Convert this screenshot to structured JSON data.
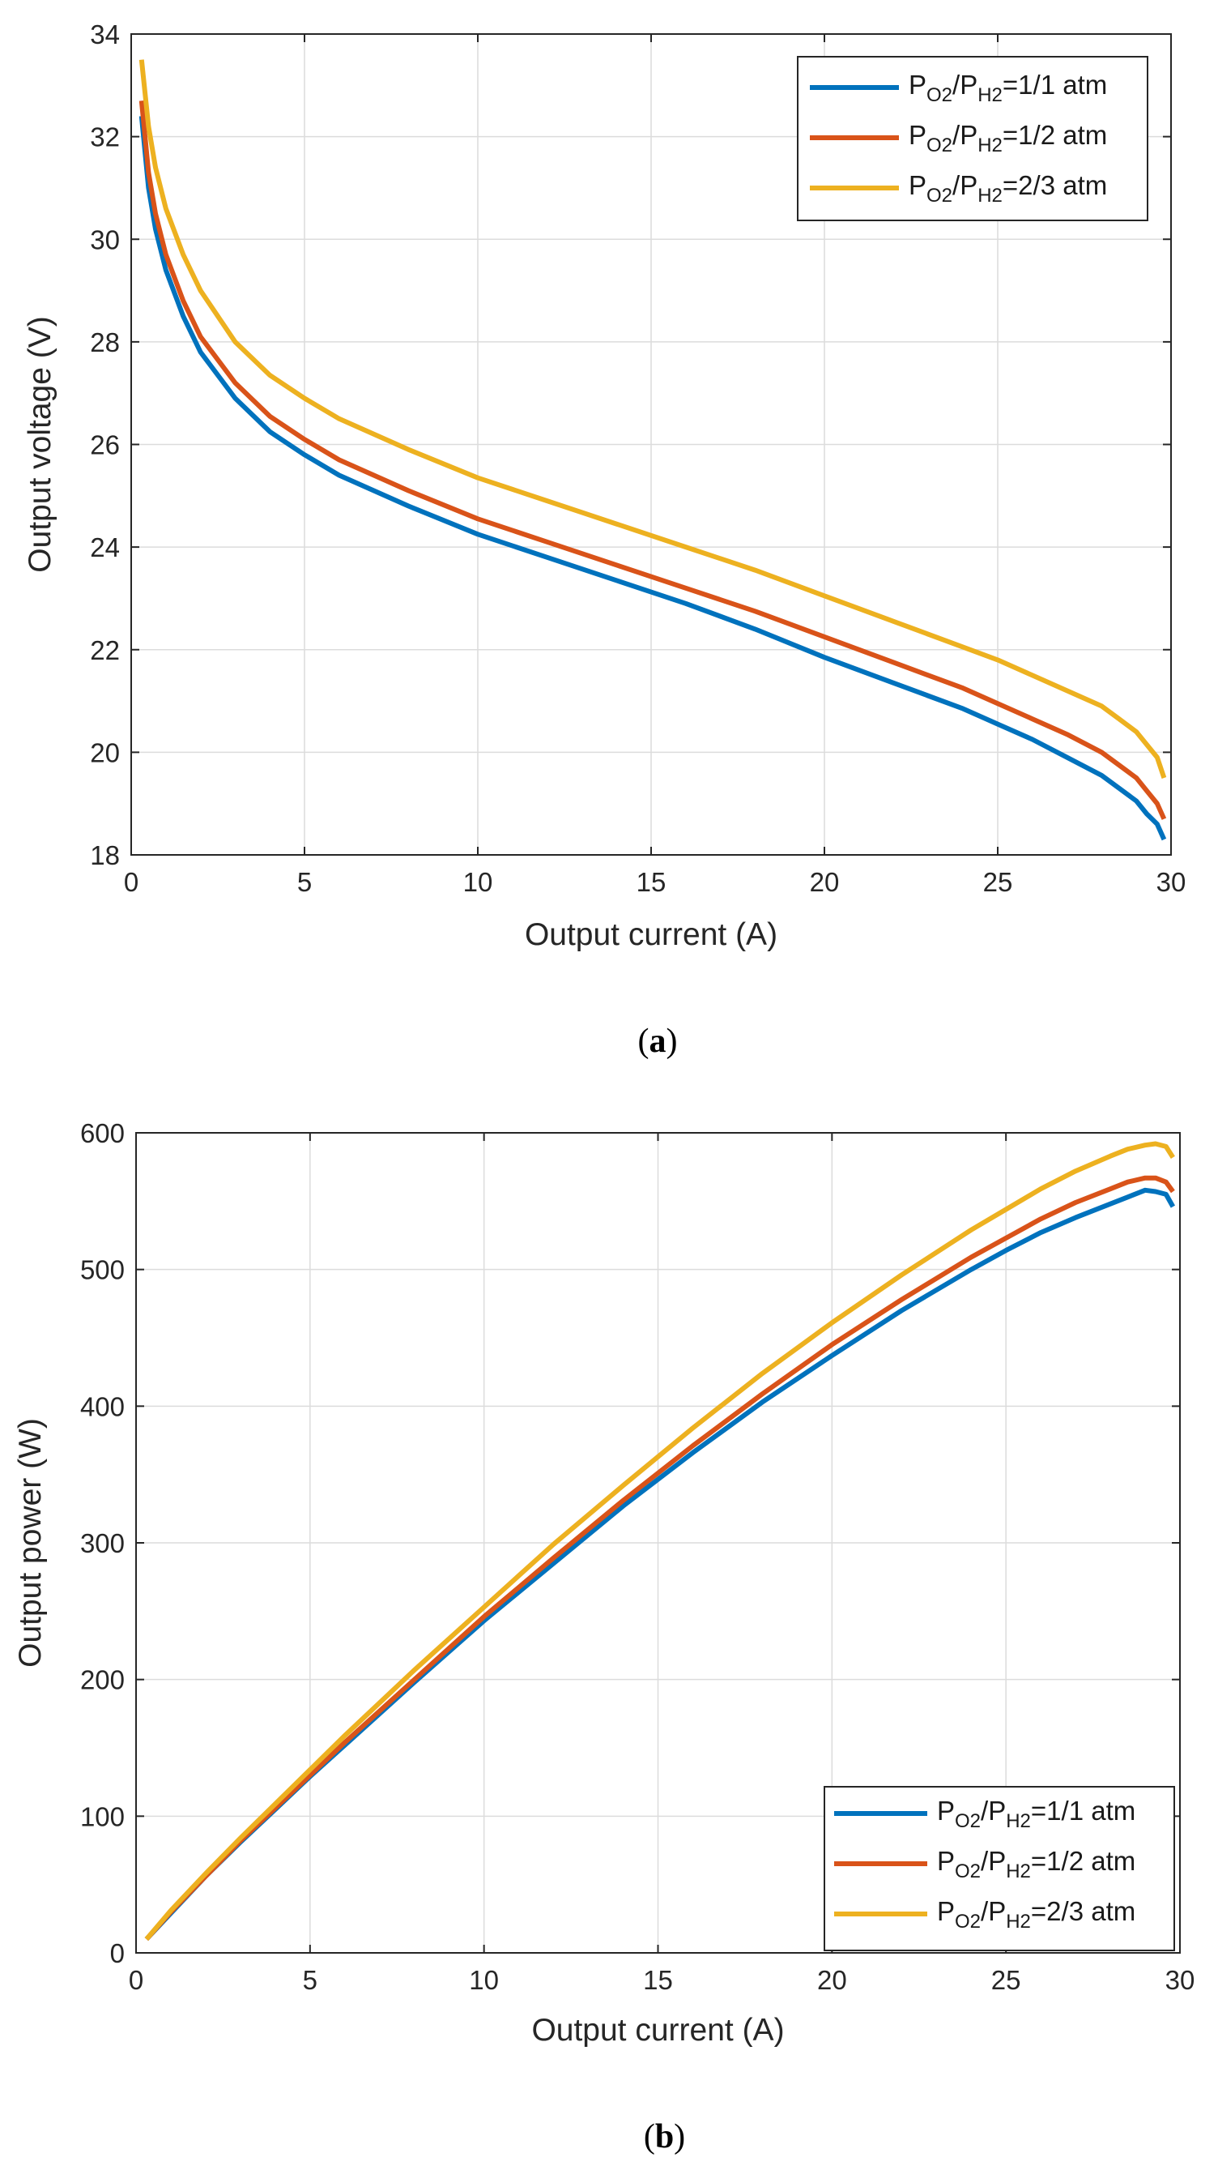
{
  "chart_data": [
    {
      "type": "line",
      "caption_letter": "a",
      "xlabel": "Output current (A)",
      "ylabel": "Output voltage (V)",
      "xlim": [
        0,
        30
      ],
      "ylim": [
        18,
        34
      ],
      "xticks": [
        0,
        5,
        10,
        15,
        20,
        25,
        30
      ],
      "yticks": [
        18,
        20,
        22,
        24,
        26,
        28,
        30,
        32,
        34
      ],
      "grid": true,
      "legend_position": "top-right",
      "series": [
        {
          "name": "PO2/PH2=1/1 atm",
          "legend": {
            "p1": "P",
            "s1": "O2",
            "p2": "/P",
            "s2": "H2",
            "rest": "=1/1 atm"
          },
          "color": "#0072BD",
          "x": [
            0.3,
            0.5,
            0.7,
            1.0,
            1.5,
            2.0,
            3.0,
            4.0,
            5.0,
            6.0,
            8.0,
            10.0,
            12.0,
            14.0,
            16.0,
            18.0,
            20.0,
            22.0,
            24.0,
            25.0,
            26.0,
            27.0,
            28.0,
            28.5,
            29.0,
            29.3,
            29.6,
            29.8
          ],
          "y": [
            32.4,
            31.0,
            30.2,
            29.4,
            28.5,
            27.8,
            26.9,
            26.25,
            25.8,
            25.4,
            24.8,
            24.25,
            23.8,
            23.35,
            22.9,
            22.4,
            21.85,
            21.35,
            20.85,
            20.55,
            20.25,
            19.9,
            19.55,
            19.3,
            19.05,
            18.8,
            18.6,
            18.3
          ]
        },
        {
          "name": "PO2/PH2=1/2 atm",
          "legend": {
            "p1": "P",
            "s1": "O2",
            "p2": "/P",
            "s2": "H2",
            "rest": "=1/2 atm"
          },
          "color": "#D95319",
          "x": [
            0.3,
            0.5,
            0.7,
            1.0,
            1.5,
            2.0,
            3.0,
            4.0,
            5.0,
            6.0,
            8.0,
            10.0,
            12.0,
            14.0,
            16.0,
            18.0,
            20.0,
            22.0,
            24.0,
            25.0,
            26.0,
            27.0,
            28.0,
            28.5,
            29.0,
            29.3,
            29.6,
            29.8
          ],
          "y": [
            32.7,
            31.3,
            30.5,
            29.7,
            28.8,
            28.1,
            27.2,
            26.55,
            26.1,
            25.7,
            25.1,
            24.55,
            24.1,
            23.65,
            23.2,
            22.75,
            22.25,
            21.75,
            21.25,
            20.95,
            20.65,
            20.35,
            20.0,
            19.75,
            19.5,
            19.25,
            19.0,
            18.7
          ]
        },
        {
          "name": "PO2/PH2=2/3 atm",
          "legend": {
            "p1": "P",
            "s1": "O2",
            "p2": "/P",
            "s2": "H2",
            "rest": "=2/3 atm"
          },
          "color": "#EDB120",
          "x": [
            0.3,
            0.5,
            0.7,
            1.0,
            1.5,
            2.0,
            3.0,
            4.0,
            5.0,
            6.0,
            8.0,
            10.0,
            12.0,
            14.0,
            16.0,
            18.0,
            20.0,
            22.0,
            24.0,
            25.0,
            26.0,
            27.0,
            28.0,
            28.5,
            29.0,
            29.3,
            29.6,
            29.8
          ],
          "y": [
            33.5,
            32.2,
            31.4,
            30.6,
            29.7,
            29.0,
            28.0,
            27.35,
            26.9,
            26.5,
            25.9,
            25.35,
            24.9,
            24.45,
            24.0,
            23.55,
            23.05,
            22.55,
            22.05,
            21.8,
            21.5,
            21.2,
            20.9,
            20.65,
            20.4,
            20.15,
            19.9,
            19.5
          ]
        }
      ]
    },
    {
      "type": "line",
      "caption_letter": "b",
      "xlabel": "Output current (A)",
      "ylabel": "Output power (W)",
      "xlim": [
        0,
        30
      ],
      "ylim": [
        0,
        600
      ],
      "xticks": [
        0,
        5,
        10,
        15,
        20,
        25,
        30
      ],
      "yticks": [
        0,
        100,
        200,
        300,
        400,
        500,
        600
      ],
      "grid": true,
      "legend_position": "bottom-right",
      "series": [
        {
          "name": "PO2/PH2=1/1 atm",
          "legend": {
            "p1": "P",
            "s1": "O2",
            "p2": "/P",
            "s2": "H2",
            "rest": "=1/1 atm"
          },
          "color": "#0072BD",
          "x": [
            0.3,
            1,
            2,
            3,
            4,
            5,
            6,
            8,
            10,
            12,
            14,
            16,
            18,
            20,
            22,
            24,
            25,
            26,
            27,
            28,
            28.5,
            29,
            29.3,
            29.6,
            29.8
          ],
          "y": [
            10,
            29,
            56,
            81,
            105,
            129,
            152,
            198,
            243,
            285,
            327,
            366,
            403,
            437,
            470,
            500,
            514,
            527,
            538,
            548,
            553,
            558,
            557,
            555,
            546
          ]
        },
        {
          "name": "PO2/PH2=1/2 atm",
          "legend": {
            "p1": "P",
            "s1": "O2",
            "p2": "/P",
            "s2": "H2",
            "rest": "=1/2 atm"
          },
          "color": "#D95319",
          "x": [
            0.3,
            1,
            2,
            3,
            4,
            5,
            6,
            8,
            10,
            12,
            14,
            16,
            18,
            20,
            22,
            24,
            25,
            26,
            27,
            28,
            28.5,
            29,
            29.3,
            29.6,
            29.8
          ],
          "y": [
            10,
            30,
            56,
            82,
            106,
            130,
            154,
            200,
            246,
            289,
            331,
            371,
            409,
            445,
            478,
            509,
            523,
            537,
            549,
            559,
            564,
            567,
            567,
            564,
            557
          ]
        },
        {
          "name": "PO2/PH2=2/3 atm",
          "legend": {
            "p1": "P",
            "s1": "O2",
            "p2": "/P",
            "s2": "H2",
            "rest": "=2/3 atm"
          },
          "color": "#EDB120",
          "x": [
            0.3,
            1,
            2,
            3,
            4,
            5,
            6,
            8,
            10,
            12,
            14,
            16,
            18,
            20,
            22,
            24,
            25,
            26,
            27,
            28,
            28.5,
            29,
            29.3,
            29.6,
            29.8
          ],
          "y": [
            10,
            31,
            58,
            84,
            109,
            134,
            159,
            207,
            253,
            299,
            342,
            384,
            424,
            461,
            496,
            529,
            544,
            559,
            572,
            583,
            588,
            591,
            592,
            590,
            582
          ]
        }
      ]
    }
  ]
}
